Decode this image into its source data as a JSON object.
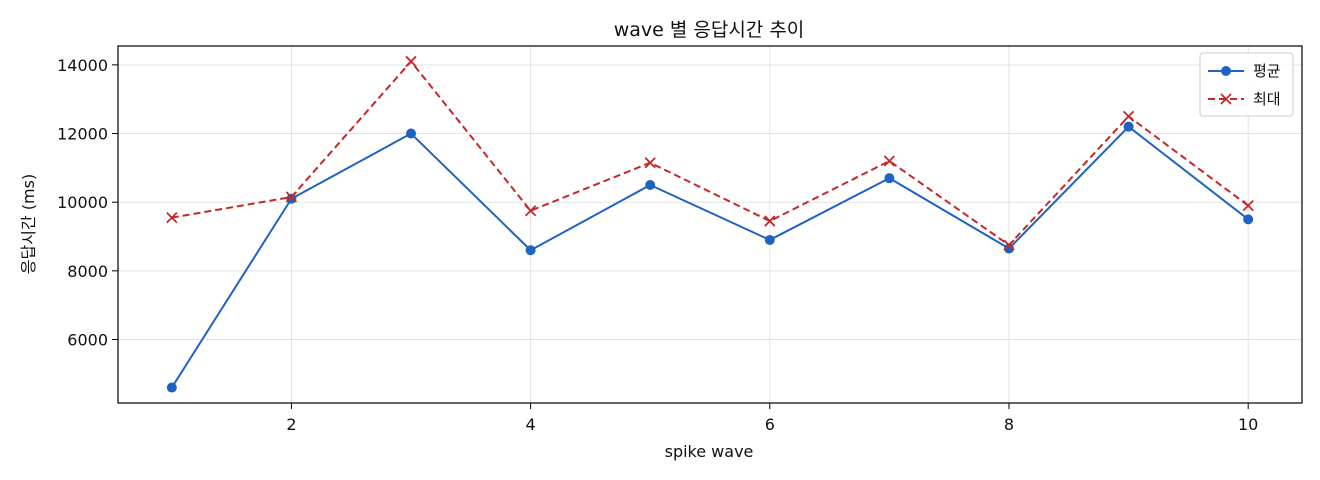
{
  "chart_data": {
    "type": "line",
    "title": "wave 별 응답시간 추이",
    "xlabel": "spike wave",
    "ylabel": "응답시간 (ms)",
    "x": [
      1,
      2,
      3,
      4,
      5,
      6,
      7,
      8,
      9,
      10
    ],
    "xlim": [
      0.55,
      10.45
    ],
    "ylim": [
      4150,
      14550
    ],
    "xticks": [
      2,
      4,
      6,
      8,
      10
    ],
    "yticks": [
      6000,
      8000,
      10000,
      12000,
      14000
    ],
    "grid": true,
    "legend_position": "top-right",
    "series": [
      {
        "name": "평균",
        "values": [
          4600,
          10100,
          12000,
          8600,
          10500,
          8900,
          10700,
          8650,
          12200,
          9500
        ],
        "color": "#1f63c2",
        "line_style": "solid",
        "marker": "circle"
      },
      {
        "name": "최대",
        "values": [
          9550,
          10150,
          14100,
          9750,
          11150,
          9450,
          11200,
          8750,
          12500,
          9900
        ],
        "color": "#c62828",
        "line_style": "dashed",
        "marker": "x"
      }
    ]
  }
}
